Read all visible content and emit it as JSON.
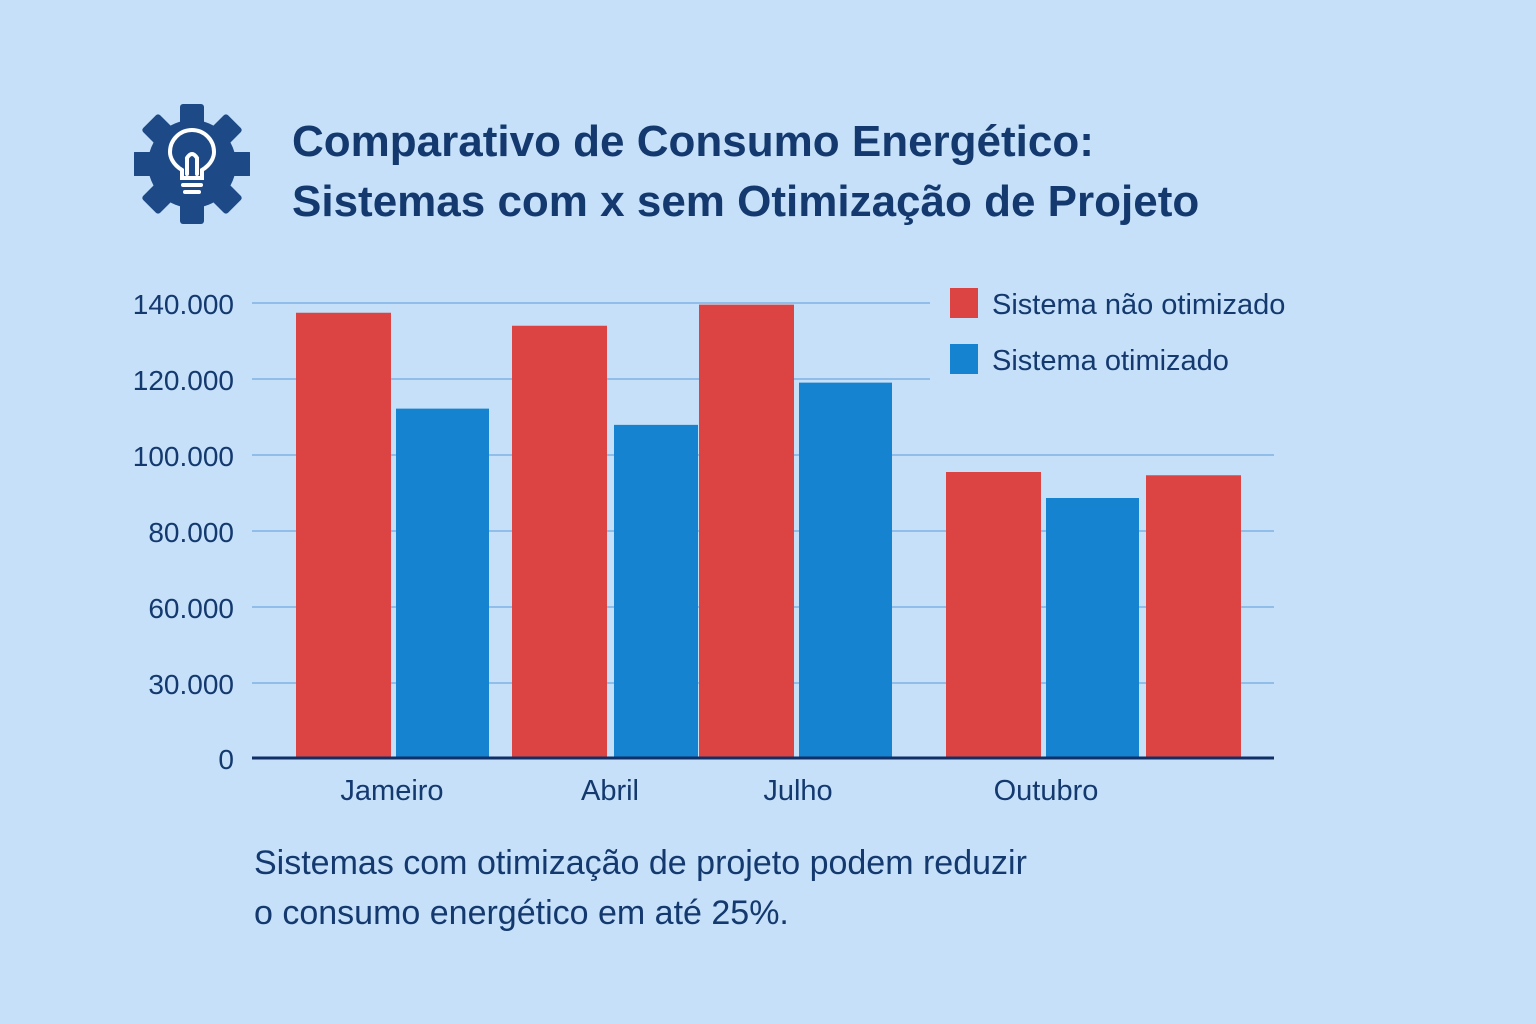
{
  "header": {
    "icon": "gear-lightbulb-icon",
    "title_line1": "Comparativo de Consumo Energético:",
    "title_line2": "Sistemas com x sem Otimização de Projeto"
  },
  "colors": {
    "background": "#c5e0f8",
    "nao_otimizado": "#dc4444",
    "otimizado": "#1683d0",
    "text": "#14396f",
    "gridline": "#7fb3e3"
  },
  "chart_data": {
    "type": "bar",
    "categories": [
      "Jameiro",
      "Abril",
      "Julho",
      "Outubro"
    ],
    "yticks": [
      "0",
      "30.000",
      "60.000",
      "80.000",
      "100.000",
      "120.000",
      "140.000"
    ],
    "ylim": [
      0,
      140000
    ],
    "grid": true,
    "legend_position": "top-right",
    "series": [
      {
        "name": "Sistema não otimizado",
        "color": "#dc4444",
        "values": [
          137000,
          133000,
          139500,
          88000
        ]
      },
      {
        "name": "Sistema otimizado",
        "color": "#1683d0",
        "values": [
          107500,
          102500,
          115500,
          80000
        ]
      }
    ],
    "extra_bar": {
      "category": "Outubro",
      "series": "Sistema não otimizado",
      "value": 87000
    },
    "title": "Comparativo de Consumo Energético: Sistemas com x sem Otimização de Projeto",
    "xlabel": "",
    "ylabel": ""
  },
  "caption": {
    "line1": "Sistemas com otimização de projeto podem reduzir",
    "line2": "o consumo energético em até 25%."
  }
}
